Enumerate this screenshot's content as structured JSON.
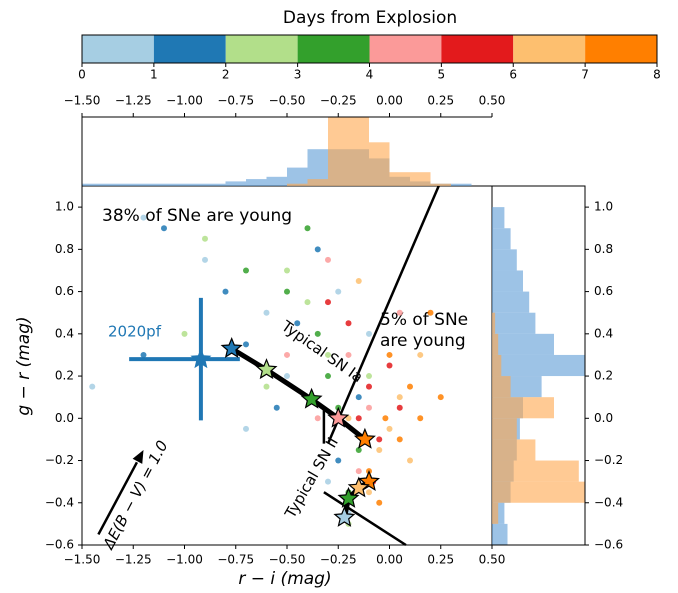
{
  "chart_data": [
    {
      "type": "colorbar",
      "title": "Days from Explosion",
      "xlim": [
        0,
        8
      ],
      "xticks": [
        0,
        1,
        2,
        3,
        4,
        5,
        6,
        7,
        8
      ],
      "colors": [
        "#a6cee3",
        "#1f78b4",
        "#b2df8a",
        "#33a02c",
        "#fb9a99",
        "#e31a1c",
        "#fdbf6f",
        "#ff7f00"
      ]
    },
    {
      "type": "scatter",
      "xlabel": "r − i (mag)",
      "ylabel": "g − r (mag)",
      "xlim": [
        -1.5,
        0.5
      ],
      "ylim": [
        -0.6,
        1.1
      ],
      "xticks": [
        {
          "value": -1.5,
          "label": "−1.50"
        },
        {
          "value": -1.25,
          "label": "−1.25"
        },
        {
          "value": -1.0,
          "label": "−1.00"
        },
        {
          "value": -0.75,
          "label": "−0.75"
        },
        {
          "value": -0.5,
          "label": "−0.50"
        },
        {
          "value": -0.25,
          "label": "−0.25"
        },
        {
          "value": 0,
          "label": "0.00"
        },
        {
          "value": 0.25,
          "label": "0.25"
        },
        {
          "value": 0.5,
          "label": "0.50"
        }
      ],
      "yticks": [
        {
          "value": -0.6,
          "label": "−0.6"
        },
        {
          "value": -0.4,
          "label": "−0.4"
        },
        {
          "value": -0.2,
          "label": "−0.2"
        },
        {
          "value": 0,
          "label": "0.0"
        },
        0.2,
        0.4,
        0.6,
        0.8,
        {
          "value": 1.0,
          "label": "1.0"
        }
      ],
      "series": [
        {
          "color": "#a6cee3",
          "x": [
            -1.2,
            -0.9,
            -0.6,
            -0.5,
            -0.3,
            -1.45,
            -0.1,
            -0.7,
            -0.25,
            -0.2
          ],
          "values": [
            0.95,
            0.75,
            0.5,
            0.2,
            -0.3,
            0.15,
            0.4,
            -0.05,
            0.6,
            -0.45
          ]
        },
        {
          "color": "#1f78b4",
          "x": [
            -1.1,
            -0.8,
            -0.45,
            -0.55,
            -0.35,
            -1.2,
            -0.25,
            -0.15,
            -0.7
          ],
          "values": [
            0.9,
            0.6,
            0.45,
            0.05,
            0.8,
            0.3,
            -0.2,
            0.1,
            0.35
          ]
        },
        {
          "color": "#b2df8a",
          "x": [
            -0.9,
            -0.5,
            -0.3,
            -0.6,
            -0.2,
            -0.4,
            -1.0,
            -0.1
          ],
          "values": [
            0.85,
            0.7,
            0.3,
            0.15,
            -0.5,
            0.55,
            0.4,
            0.2
          ]
        },
        {
          "color": "#33a02c",
          "x": [
            -0.4,
            -0.35,
            -0.25,
            -0.2,
            -0.5,
            -0.15,
            -0.3,
            -0.7
          ],
          "values": [
            0.9,
            0.4,
            0.05,
            -0.35,
            0.6,
            -0.15,
            0.2,
            0.7
          ]
        },
        {
          "color": "#fb9a99",
          "x": [
            -0.3,
            -0.2,
            -0.1,
            -0.15,
            -0.5,
            0.05,
            -0.35
          ],
          "values": [
            0.75,
            0.3,
            0.05,
            -0.25,
            0.3,
            0.5,
            0.0
          ]
        },
        {
          "color": "#e31a1c",
          "x": [
            -0.1,
            -0.05,
            -0.15,
            0.0,
            -0.2,
            -0.08,
            0.05,
            -0.3
          ],
          "values": [
            0.15,
            -0.1,
            0.0,
            0.25,
            0.45,
            -0.3,
            0.05,
            0.55
          ]
        },
        {
          "color": "#fdbf6f",
          "x": [
            -0.05,
            0.0,
            -0.1,
            0.05,
            -0.15,
            0.1,
            -0.2,
            0.15,
            -0.4
          ],
          "values": [
            -0.15,
            -0.05,
            -0.35,
            0.1,
            0.65,
            -0.2,
            0.0,
            0.3,
            0.1
          ]
        },
        {
          "color": "#ff7f00",
          "x": [
            -0.02,
            0.05,
            -0.1,
            0.1,
            0.2,
            -0.05,
            0.15,
            0.0,
            0.25
          ],
          "values": [
            0.0,
            -0.1,
            -0.25,
            0.15,
            0.5,
            -0.4,
            0.0,
            0.3,
            0.1
          ]
        }
      ],
      "tracks": [
        {
          "x": [
            -0.77,
            -0.6,
            -0.38,
            -0.25,
            -0.12
          ],
          "values": [
            0.33,
            0.23,
            0.09,
            0.0,
            -0.1
          ],
          "colors": [
            "#1f78b4",
            "#b2df8a",
            "#33a02c",
            "#fb9a99",
            "#ff7f00"
          ]
        },
        {
          "x": [
            -0.1,
            -0.15,
            -0.2,
            -0.22
          ],
          "values": [
            -0.3,
            -0.33,
            -0.38,
            -0.47
          ],
          "colors": [
            "#ff7f00",
            "#fdbf6f",
            "#33a02c",
            "#a6cee3"
          ]
        }
      ],
      "object": {
        "name": "2020pf",
        "color": "#1f77b4",
        "x": -0.92,
        "y": 0.28,
        "xerr": [
          0.35,
          0.19
        ],
        "yerr": 0.29
      },
      "lines": [
        {
          "x": [
            0.24,
            -0.3
          ],
          "y": [
            1.1,
            -0.12
          ]
        },
        {
          "x": [
            -0.32,
            -0.32
          ],
          "y": [
            0.05,
            -0.12
          ]
        },
        {
          "x": [
            -0.32,
            0.08
          ],
          "y": [
            -0.35,
            -0.6
          ]
        }
      ],
      "arrow": {
        "x": [
          -1.42,
          -1.2
        ],
        "y": [
          -0.55,
          -0.15
        ]
      },
      "annotations": [
        "38% of SNe are young",
        "5% of SNe",
        "are young",
        "Typical SN Ia",
        "Typical SN II",
        "ΔE(B − V) = 1.0"
      ]
    },
    {
      "type": "histogram",
      "bins": [
        -1.5,
        -1.4,
        -1.3,
        -1.2,
        -1.1,
        -1.0,
        -0.9,
        -0.8,
        -0.7,
        -0.6,
        -0.5,
        -0.4,
        -0.3,
        -0.2,
        -0.1,
        0.0,
        0.1,
        0.2,
        0.3,
        0.4,
        0.5
      ],
      "ylim": [
        0,
        30
      ],
      "series": [
        {
          "color": "#5b9bd5",
          "values": [
            1,
            1,
            1,
            1,
            1,
            1,
            1,
            2,
            3,
            4,
            8,
            16,
            16,
            16,
            12,
            4,
            2,
            1,
            1,
            0
          ]
        },
        {
          "color": "#ffa64d",
          "values": [
            0,
            0,
            0,
            0,
            0,
            0,
            0,
            0,
            0,
            0,
            1,
            3,
            30,
            30,
            19,
            6,
            6,
            1,
            0,
            0
          ]
        }
      ]
    },
    {
      "type": "histogram-horizontal",
      "bins": [
        -0.6,
        -0.5,
        -0.4,
        -0.3,
        -0.2,
        -0.1,
        0.0,
        0.1,
        0.2,
        0.3,
        0.4,
        0.5,
        0.6,
        0.7,
        0.8,
        0.9,
        1.0
      ],
      "xlim": [
        0,
        30
      ],
      "series": [
        {
          "color": "#5b9bd5",
          "values": [
            5,
            4,
            6,
            7,
            8,
            9,
            10,
            16,
            30,
            20,
            14,
            12,
            10,
            8,
            6,
            4
          ]
        },
        {
          "color": "#ffa64d",
          "values": [
            0,
            2,
            30,
            28,
            14,
            8,
            20,
            6,
            3,
            2,
            1,
            0,
            0,
            0,
            0,
            0
          ]
        }
      ]
    }
  ]
}
